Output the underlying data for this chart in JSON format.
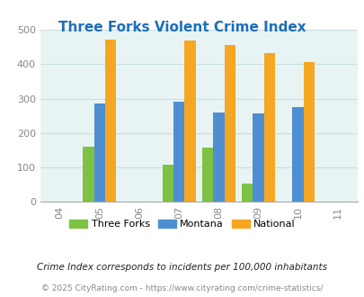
{
  "title": "Three Forks Violent Crime Index",
  "title_color": "#1a6fbd",
  "years_all": [
    2004,
    2005,
    2006,
    2007,
    2008,
    2009,
    2010,
    2011
  ],
  "data_years": [
    2005,
    2007,
    2008,
    2009,
    2010
  ],
  "three_forks": [
    160,
    107,
    158,
    53,
    0
  ],
  "montana": [
    285,
    290,
    260,
    257,
    275
  ],
  "national": [
    470,
    468,
    455,
    433,
    407
  ],
  "bar_colors": {
    "three_forks": "#7dc242",
    "montana": "#4d8fd1",
    "national": "#f5a623"
  },
  "ylim": [
    0,
    500
  ],
  "yticks": [
    0,
    100,
    200,
    300,
    400,
    500
  ],
  "bg_color": "#e8f4f4",
  "grid_color": "#c8dfe0",
  "bar_width": 0.28,
  "legend_labels": [
    "Three Forks",
    "Montana",
    "National"
  ],
  "footnote1": "Crime Index corresponds to incidents per 100,000 inhabitants",
  "footnote2": "© 2025 CityRating.com - https://www.cityrating.com/crime-statistics/",
  "footnote1_color": "#222222",
  "footnote2_color": "#888888",
  "footnote1_fontsize": 7.5,
  "footnote2_fontsize": 6.5,
  "title_fontsize": 11
}
